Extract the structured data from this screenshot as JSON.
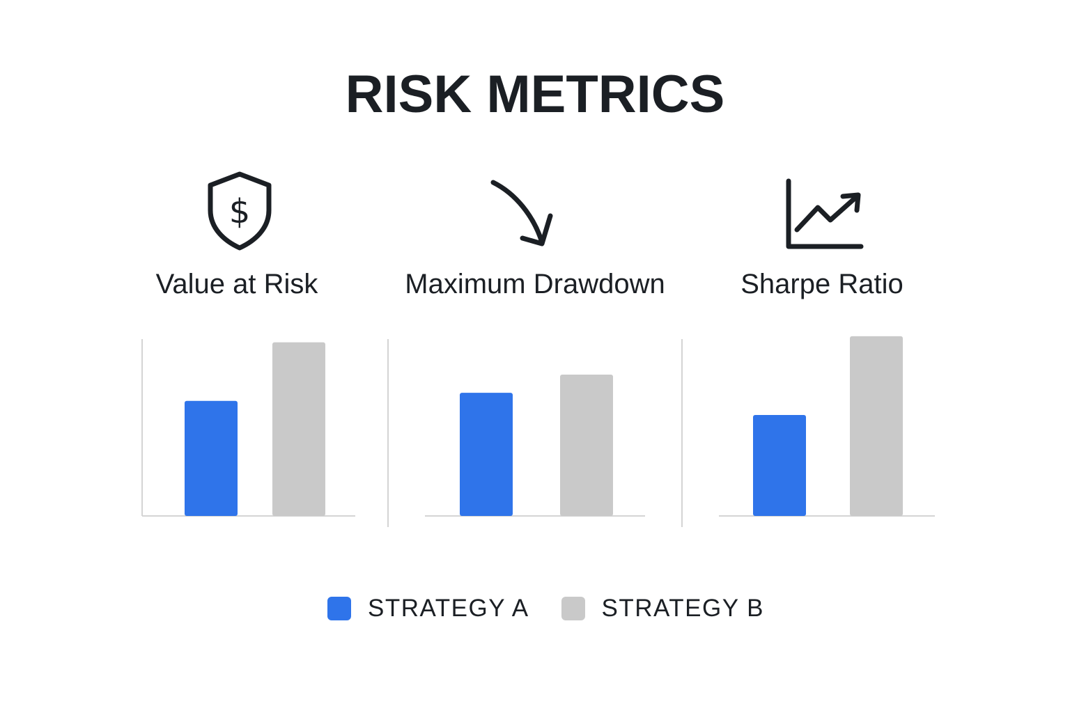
{
  "title": "RISK METRICS",
  "colors": {
    "strategy_a": "#2f74ea",
    "strategy_b": "#c9c9c9",
    "axis": "#d4d4d4",
    "icon": "#1b1f24"
  },
  "metrics": [
    {
      "label": "Value at Risk",
      "icon": "shield-dollar-icon"
    },
    {
      "label": "Maximum Drawdown",
      "icon": "down-curve-arrow-icon"
    },
    {
      "label": "Sharpe Ratio",
      "icon": "line-chart-up-icon"
    }
  ],
  "legend": [
    {
      "label": "STRATEGY A",
      "color": "#2f74ea"
    },
    {
      "label": "STRATEGY B",
      "color": "#c9c9c9"
    }
  ],
  "chart_data": [
    {
      "type": "bar",
      "title": "Value at Risk",
      "categories": [
        "STRATEGY A",
        "STRATEGY B"
      ],
      "values": [
        0.57,
        0.86
      ],
      "ylim": [
        0,
        1
      ],
      "grid": false
    },
    {
      "type": "bar",
      "title": "Maximum Drawdown",
      "categories": [
        "STRATEGY A",
        "STRATEGY B"
      ],
      "values": [
        0.61,
        0.7
      ],
      "ylim": [
        0,
        1
      ],
      "grid": false
    },
    {
      "type": "bar",
      "title": "Sharpe Ratio",
      "categories": [
        "STRATEGY A",
        "STRATEGY B"
      ],
      "values": [
        0.5,
        0.89
      ],
      "ylim": [
        0,
        1
      ],
      "grid": false
    }
  ]
}
